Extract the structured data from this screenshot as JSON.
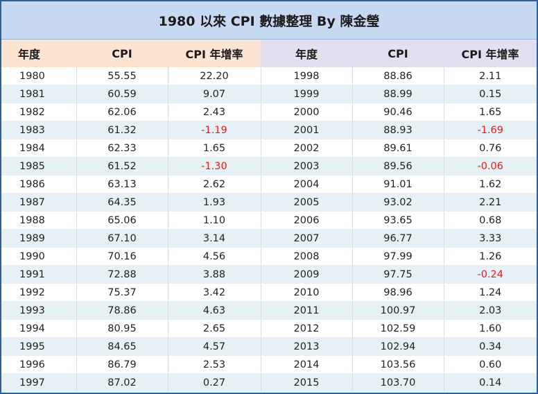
{
  "title": "1980 以來 CPI 數據整理  By  陳金瑩",
  "headers": [
    "年度",
    "CPI",
    "CPI 年增率",
    "年度",
    "CPI",
    "CPI 年增率"
  ],
  "rows": [
    {
      "y1": "1980",
      "c1": "55.55",
      "r1": "22.20",
      "y2": "1998",
      "c2": "88.86",
      "r2": "2.11"
    },
    {
      "y1": "1981",
      "c1": "60.59",
      "r1": "9.07",
      "y2": "1999",
      "c2": "88.99",
      "r2": "0.15"
    },
    {
      "y1": "1982",
      "c1": "62.06",
      "r1": "2.43",
      "y2": "2000",
      "c2": "90.46",
      "r2": "1.65"
    },
    {
      "y1": "1983",
      "c1": "61.32",
      "r1": "-1.19",
      "y2": "2001",
      "c2": "88.93",
      "r2": "-1.69"
    },
    {
      "y1": "1984",
      "c1": "62.33",
      "r1": "1.65",
      "y2": "2002",
      "c2": "89.61",
      "r2": "0.76"
    },
    {
      "y1": "1985",
      "c1": "61.52",
      "r1": "-1.30",
      "y2": "2003",
      "c2": "89.56",
      "r2": "-0.06"
    },
    {
      "y1": "1986",
      "c1": "63.13",
      "r1": "2.62",
      "y2": "2004",
      "c2": "91.01",
      "r2": "1.62"
    },
    {
      "y1": "1987",
      "c1": "64.35",
      "r1": "1.93",
      "y2": "2005",
      "c2": "93.02",
      "r2": "2.21"
    },
    {
      "y1": "1988",
      "c1": "65.06",
      "r1": "1.10",
      "y2": "2006",
      "c2": "93.65",
      "r2": "0.68"
    },
    {
      "y1": "1989",
      "c1": "67.10",
      "r1": "3.14",
      "y2": "2007",
      "c2": "96.77",
      "r2": "3.33"
    },
    {
      "y1": "1990",
      "c1": "70.16",
      "r1": "4.56",
      "y2": "2008",
      "c2": "97.99",
      "r2": "1.26"
    },
    {
      "y1": "1991",
      "c1": "72.88",
      "r1": "3.88",
      "y2": "2009",
      "c2": "97.75",
      "r2": "-0.24"
    },
    {
      "y1": "1992",
      "c1": "75.37",
      "r1": "3.42",
      "y2": "2010",
      "c2": "98.96",
      "r2": "1.24"
    },
    {
      "y1": "1993",
      "c1": "78.86",
      "r1": "4.63",
      "y2": "2011",
      "c2": "100.97",
      "r2": "2.03"
    },
    {
      "y1": "1994",
      "c1": "80.95",
      "r1": "2.65",
      "y2": "2012",
      "c2": "102.59",
      "r2": "1.60"
    },
    {
      "y1": "1995",
      "c1": "84.65",
      "r1": "4.57",
      "y2": "2013",
      "c2": "102.94",
      "r2": "0.34"
    },
    {
      "y1": "1996",
      "c1": "86.79",
      "r1": "2.53",
      "y2": "2014",
      "c2": "103.56",
      "r2": "0.60"
    },
    {
      "y1": "1997",
      "c1": "87.02",
      "r1": "0.27",
      "y2": "2015",
      "c2": "103.70",
      "r2": "0.14"
    }
  ],
  "colors": {
    "frame_border": "#2f5f9a",
    "title_bg": "#c6d9f1",
    "header_left_bg": "#fce4d2",
    "header_right_bg": "#e3dff0",
    "alt_row_bg": "#e6f1f5",
    "negative_text": "#e8171b"
  }
}
